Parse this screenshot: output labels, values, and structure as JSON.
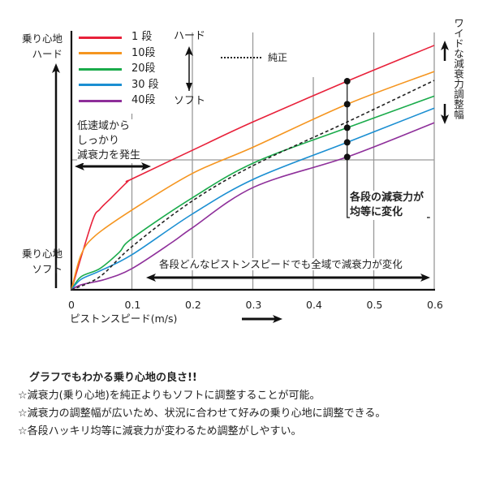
{
  "chart_data": {
    "type": "line",
    "xlabel": "ピストンスピード(m/s)",
    "ylabel_top": [
      "乗り心地",
      "ハード"
    ],
    "ylabel_bottom": [
      "乗り心地",
      "ソフト"
    ],
    "xlim": [
      0,
      0.6
    ],
    "ylim": [
      0,
      100
    ],
    "x_ticks": [
      "0",
      "0.1",
      "0.2",
      "0.3",
      "0.4",
      "0.5",
      "0.6"
    ],
    "grid": true,
    "legend_position": "top-left",
    "series": [
      {
        "name": "1 段",
        "color": "#e8213a",
        "dashed": false,
        "x": [
          0,
          0.034,
          0.047,
          0.066,
          0.093,
          0.1,
          0.213,
          0.3,
          0.456,
          0.6
        ],
        "y": [
          0,
          25.9,
          30.8,
          35.2,
          41.4,
          42.4,
          54.8,
          64.2,
          79.8,
          93.5
        ]
      },
      {
        "name": "10段",
        "color": "#f5951f",
        "dashed": false,
        "x": [
          0,
          0.016,
          0.039,
          0.1,
          0.2,
          0.3,
          0.456,
          0.6
        ],
        "y": [
          0,
          13.4,
          20.6,
          30.5,
          44.5,
          54.5,
          71.0,
          83.5
        ]
      },
      {
        "name": "20段",
        "color": "#1aab4b",
        "dashed": false,
        "x": [
          0,
          0.016,
          0.047,
          0.079,
          0.1,
          0.2,
          0.302,
          0.456,
          0.6
        ],
        "y": [
          0,
          5.0,
          8.1,
          14.3,
          19.6,
          35.2,
          48.6,
          62.0,
          74.1
        ]
      },
      {
        "name": "30 段",
        "color": "#1b8fd2",
        "dashed": false,
        "x": [
          0,
          0.016,
          0.047,
          0.1,
          0.2,
          0.302,
          0.456,
          0.6
        ],
        "y": [
          0,
          4.0,
          7.2,
          13.4,
          29.0,
          42.4,
          56.4,
          69.5
        ]
      },
      {
        "name": "40段",
        "color": "#8e2f9a",
        "dashed": false,
        "x": [
          0,
          0.016,
          0.056,
          0.1,
          0.168,
          0.2,
          0.302,
          0.456,
          0.6
        ],
        "y": [
          0,
          1.9,
          4.0,
          8.1,
          18.4,
          23.7,
          39.3,
          50.8,
          63.9
        ]
      },
      {
        "name": "純正",
        "color": "#222222",
        "dashed": true,
        "x": [
          0,
          0.047,
          0.1,
          0.2,
          0.302,
          0.456,
          0.6
        ],
        "y": [
          0,
          5.0,
          16.5,
          34.0,
          47.7,
          64.2,
          80.1
        ]
      }
    ],
    "marker_x": 0.456,
    "annotations": {
      "hard_label": "ハード",
      "soft_label": "ソフト",
      "low_speed": [
        "低速域から",
        "しっかり",
        "減衰力を発生"
      ],
      "even_change": [
        "各段の減衰力が",
        "均等に変化"
      ],
      "all_range": "各段どんなピストンスピードでも全域で減衰力が変化",
      "wide_range": "ワイドな減衰力調整幅"
    }
  },
  "notes": {
    "heading": "グラフでもわかる乗り心地の良さ!!",
    "items": [
      "☆減衰力(乗り心地)を純正よりもソフトに調整することが可能。",
      "☆減衰力の調整幅が広いため、状況に合わせて好みの乗り心地に調整できる。",
      "☆各段ハッキリ均等に減衰力が変わるため調整がしやすい。"
    ]
  }
}
